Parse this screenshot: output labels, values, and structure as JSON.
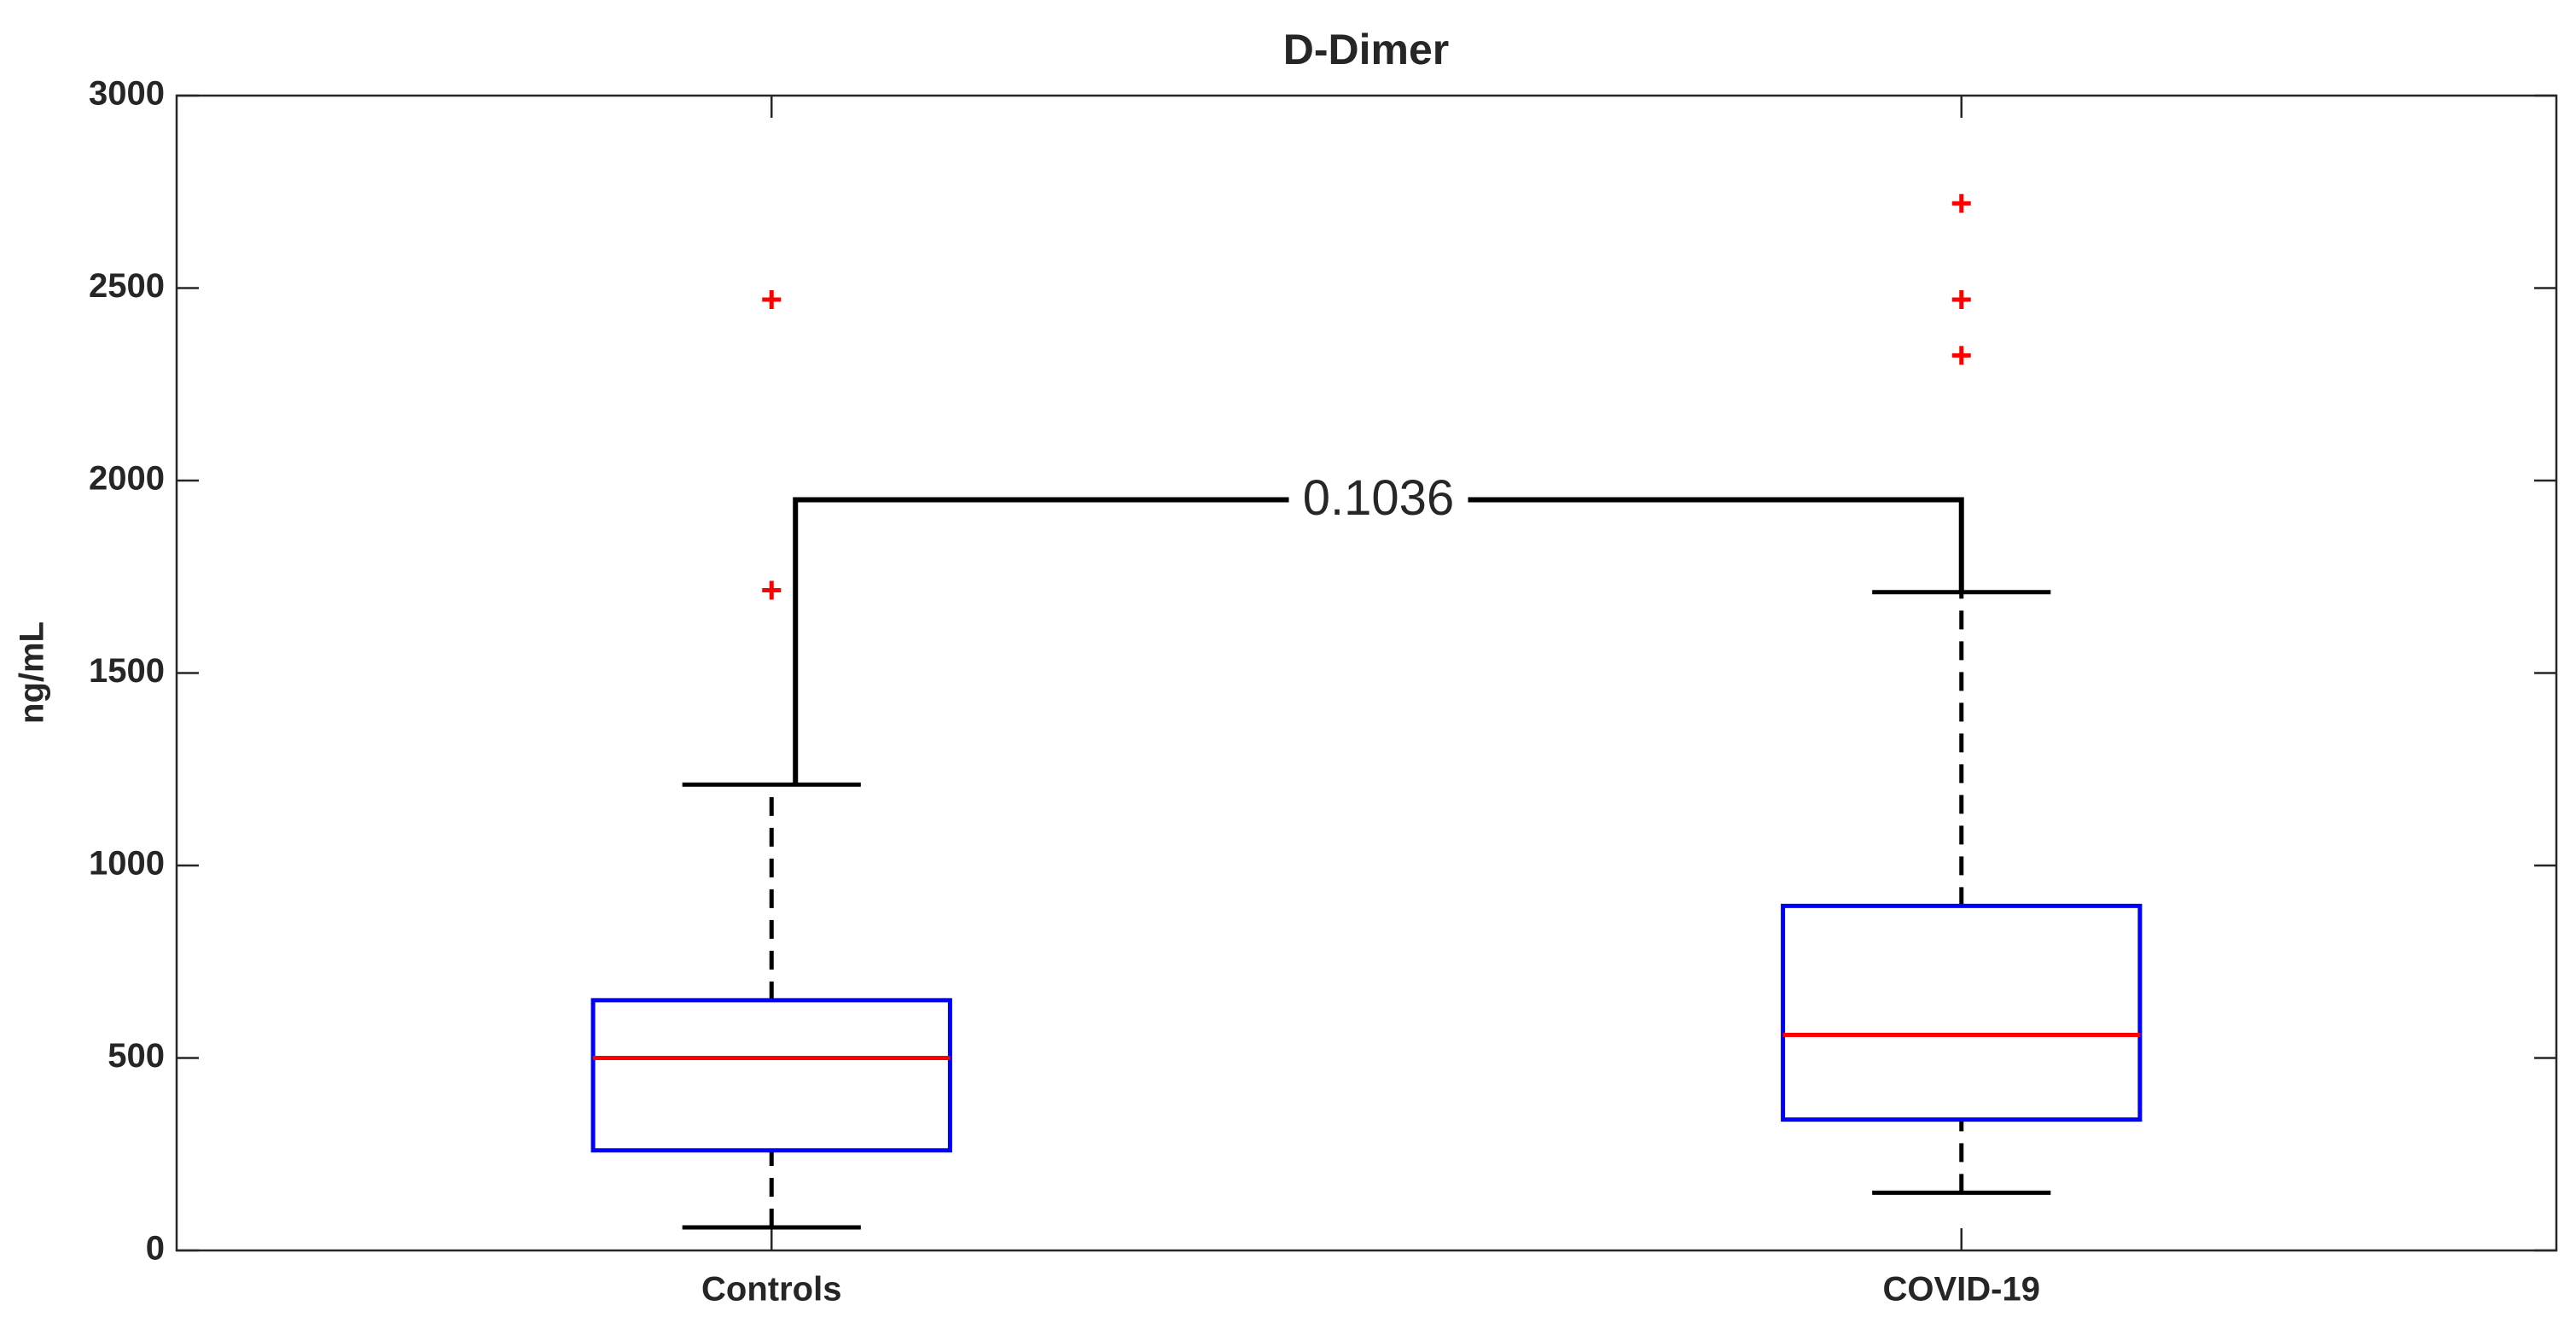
{
  "chart_data": {
    "type": "box",
    "title": "D-Dimer",
    "y_label": "ng/mL",
    "categories": [
      "Controls",
      "COVID-19"
    ],
    "boxes": [
      {
        "whislo": 60,
        "q1": 260,
        "med": 500,
        "q3": 650,
        "whishi": 1210,
        "fliers": [
          1715,
          2470
        ]
      },
      {
        "whislo": 150,
        "q1": 340,
        "med": 560,
        "q3": 895,
        "whishi": 1710,
        "fliers": [
          2325,
          2470,
          2720
        ]
      }
    ],
    "significance": {
      "between": [
        0,
        1
      ],
      "label": "0.1036"
    },
    "box_color": "#0000ff",
    "median_color": "#ff0000",
    "whisker_color": "#000000",
    "flier_color": "#ff0000",
    "ylim": [
      0,
      3000
    ],
    "yticks": [
      0,
      500,
      1000,
      1500,
      2000,
      2500,
      3000
    ]
  }
}
